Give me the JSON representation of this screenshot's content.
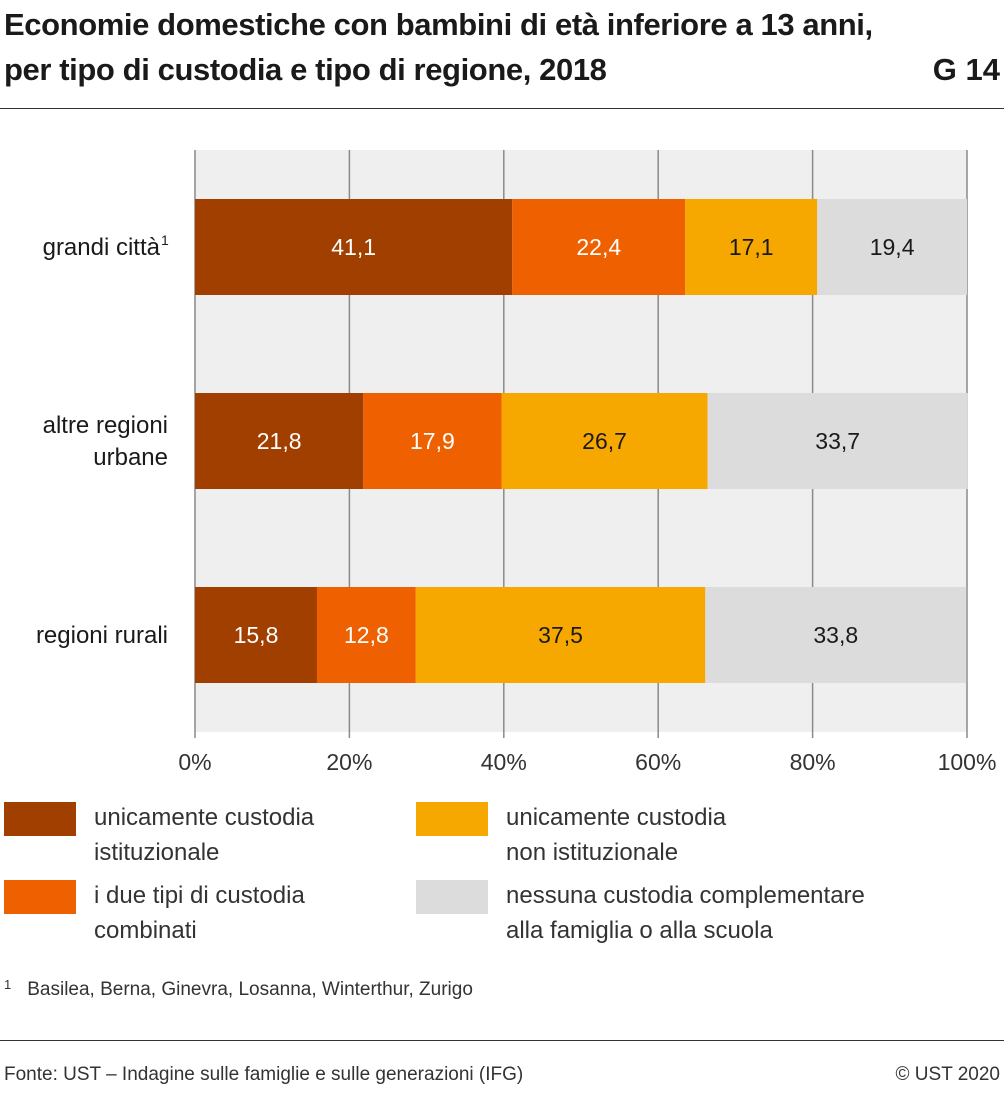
{
  "header": {
    "title": "Economie domestiche con bambini di età inferiore a 13 anni, per tipo di custodia e tipo di regione, 2018",
    "graphic_number": "G 14"
  },
  "chart_data": {
    "type": "bar",
    "orientation": "horizontal",
    "stacked": true,
    "categories": [
      "grandi città",
      "altre regioni urbane",
      "regioni rurali"
    ],
    "category_footnote": [
      "1",
      "",
      ""
    ],
    "series": [
      {
        "name": "unicamente custodia istituzionale",
        "values": [
          41.1,
          21.8,
          15.8
        ],
        "labels": [
          "41,1",
          "21,8",
          "15,8"
        ],
        "color": "#a13f00",
        "label_color": "#ffffff"
      },
      {
        "name": "i due tipi di custodia combinati",
        "values": [
          22.4,
          17.9,
          12.8
        ],
        "labels": [
          "22,4",
          "17,9",
          "12,8"
        ],
        "color": "#ee6000",
        "label_color": "#ffffff"
      },
      {
        "name": "unicamente custodia non istituzionale",
        "values": [
          17.1,
          26.7,
          37.5
        ],
        "labels": [
          "17,1",
          "26,7",
          "37,5"
        ],
        "color": "#f7a800",
        "label_color": "#1a1a1a"
      },
      {
        "name": "nessuna custodia complementare alla famiglia o alla scuola",
        "values": [
          19.4,
          33.7,
          33.8
        ],
        "labels": [
          "19,4",
          "33,7",
          "33,8"
        ],
        "color": "#dcdcdc",
        "label_color": "#1a1a1a"
      }
    ],
    "xlim": [
      0,
      100
    ],
    "xticks": [
      "0%",
      "20%",
      "40%",
      "60%",
      "80%",
      "100%"
    ],
    "grid": true,
    "legend_position": "bottom"
  },
  "legend": [
    {
      "label": "unicamente custodia\nistituzionale",
      "color": "#a13f00"
    },
    {
      "label": "i due tipi di custodia\ncombinati",
      "color": "#ee6000"
    },
    {
      "label": "unicamente custodia\nnon istituzionale",
      "color": "#f7a800"
    },
    {
      "label": "nessuna custodia complementare\nalla famiglia o alla scuola",
      "color": "#dcdcdc"
    }
  ],
  "footnote": {
    "marker": "1",
    "text": "Basilea, Berna, Ginevra, Losanna, Winterthur, Zurigo"
  },
  "source": "Fonte: UST – Indagine sulle famiglie e sulle generazioni (IFG)",
  "copyright": "© UST 2020"
}
